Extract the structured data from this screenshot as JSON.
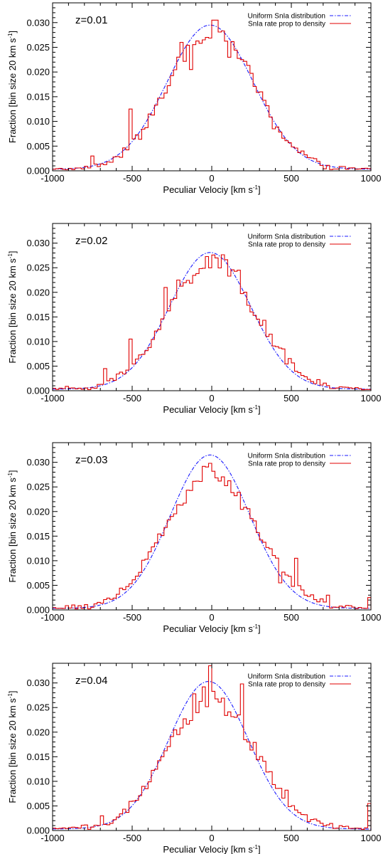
{
  "colors": {
    "uniform": "#1a1aff",
    "density": "#e00000",
    "axis": "#000000"
  },
  "chart_data": [
    {
      "type": "line",
      "annotation": "z=0.01",
      "xlabel": "Peculiar Velociy [km s",
      "xlabel_sup": "-1",
      "xlabel_close": "]",
      "ylabel": "Fraction [bin size 20 km s",
      "ylabel_sup": "-1",
      "ylabel_close": "]",
      "xlim": [
        -1000,
        1000
      ],
      "ylim": [
        0,
        0.034
      ],
      "xticks": [
        -1000,
        -500,
        0,
        500,
        1000
      ],
      "yticks": [
        "0.000",
        "0.005",
        "0.010",
        "0.015",
        "0.020",
        "0.025",
        "0.030"
      ],
      "legend_position": "top-right",
      "grid": false,
      "series": [
        {
          "name": "Uniform SnIa distribution",
          "style": "dash-dot",
          "color_key": "uniform",
          "sigma": 270,
          "peak": 0.0292,
          "mu": -10
        },
        {
          "name": "SnIa rate prop to density",
          "style": "histogram",
          "color_key": "density",
          "sigma": 270,
          "peak": 0.0285,
          "mu": 0,
          "features": [
            [
              -520,
              0.0125
            ],
            [
              -400,
              0.0115
            ],
            [
              -200,
              0.026
            ],
            [
              -140,
              0.0205
            ],
            [
              -40,
              0.027
            ],
            [
              20,
              0.0305
            ],
            [
              100,
              0.023
            ],
            [
              180,
              0.0225
            ],
            [
              380,
              0.0085
            ],
            [
              560,
              0.004
            ],
            [
              -760,
              0.003
            ]
          ]
        }
      ]
    },
    {
      "type": "line",
      "annotation": "z=0.02",
      "xlabel": "Peculiar Velociy [km s",
      "xlabel_sup": "-1",
      "xlabel_close": "]",
      "ylabel": "Fraction [bin size 20 km s",
      "ylabel_sup": "-1",
      "ylabel_close": "]",
      "xlim": [
        -1000,
        1000
      ],
      "ylim": [
        0,
        0.034
      ],
      "xticks": [
        -1000,
        -500,
        0,
        500,
        1000
      ],
      "yticks": [
        "0.000",
        "0.005",
        "0.010",
        "0.015",
        "0.020",
        "0.025",
        "0.030"
      ],
      "legend_position": "top-right",
      "grid": false,
      "series": [
        {
          "name": "Uniform SnIa distribution",
          "style": "dash-dot",
          "color_key": "uniform",
          "sigma": 255,
          "peak": 0.0278,
          "mu": -10
        },
        {
          "name": "SnIa rate prop to density",
          "style": "histogram",
          "color_key": "density",
          "sigma": 275,
          "peak": 0.0262,
          "mu": 0,
          "features": [
            [
              -520,
              0.0105
            ],
            [
              -300,
              0.021
            ],
            [
              -220,
              0.0225
            ],
            [
              20,
              0.027
            ],
            [
              160,
              0.0245
            ],
            [
              360,
              0.0115
            ],
            [
              440,
              0.0085
            ],
            [
              -680,
              0.0045
            ]
          ]
        }
      ]
    },
    {
      "type": "line",
      "annotation": "z=0.03",
      "xlabel": "Peculiar Velociy [km s",
      "xlabel_sup": "-1",
      "xlabel_close": "]",
      "ylabel": "Fraction [bin size 20 km s",
      "ylabel_sup": "-1",
      "ylabel_close": "]",
      "xlim": [
        -1000,
        1000
      ],
      "ylim": [
        0,
        0.034
      ],
      "xticks": [
        -1000,
        -500,
        0,
        500,
        1000
      ],
      "yticks": [
        "0.000",
        "0.005",
        "0.010",
        "0.015",
        "0.020",
        "0.025",
        "0.030"
      ],
      "legend_position": "top-right",
      "grid": false,
      "series": [
        {
          "name": "Uniform SnIa distribution",
          "style": "dash-dot",
          "color_key": "uniform",
          "sigma": 250,
          "peak": 0.0312,
          "mu": -10
        },
        {
          "name": "SnIa rate prop to density",
          "style": "histogram",
          "color_key": "density",
          "sigma": 285,
          "peak": 0.0275,
          "mu": 0,
          "features": [
            [
              -20,
              0.0298
            ],
            [
              40,
              0.0262
            ],
            [
              140,
              0.0232
            ],
            [
              520,
              0.0105
            ],
            [
              420,
              0.0055
            ],
            [
              720,
              0.003
            ],
            [
              980,
              0.0025
            ]
          ]
        }
      ]
    },
    {
      "type": "line",
      "annotation": "z=0.04",
      "xlabel": "Peculiar Velociy [km s",
      "xlabel_sup": "-1",
      "xlabel_close": "]",
      "ylabel": "Fraction [bin size 20 km s",
      "ylabel_sup": "-1",
      "ylabel_close": "]",
      "xlim": [
        -1000,
        1000
      ],
      "ylim": [
        0,
        0.034
      ],
      "xticks": [
        -1000,
        -500,
        0,
        500,
        1000
      ],
      "yticks": [
        "0.000",
        "0.005",
        "0.010",
        "0.015",
        "0.020",
        "0.025",
        "0.030"
      ],
      "legend_position": "top-right",
      "grid": false,
      "series": [
        {
          "name": "Uniform SnIa distribution",
          "style": "dash-dot",
          "color_key": "uniform",
          "sigma": 250,
          "peak": 0.03,
          "mu": -20
        },
        {
          "name": "SnIa rate prop to density",
          "style": "histogram",
          "color_key": "density",
          "sigma": 275,
          "peak": 0.0265,
          "mu": 0,
          "features": [
            [
              -20,
              0.0335
            ],
            [
              -60,
              0.0292
            ],
            [
              -120,
              0.0278
            ],
            [
              180,
              0.0298
            ],
            [
              220,
              0.018
            ],
            [
              460,
              0.0082
            ],
            [
              990,
              0.0055
            ],
            [
              -700,
              0.003
            ]
          ]
        }
      ]
    }
  ]
}
